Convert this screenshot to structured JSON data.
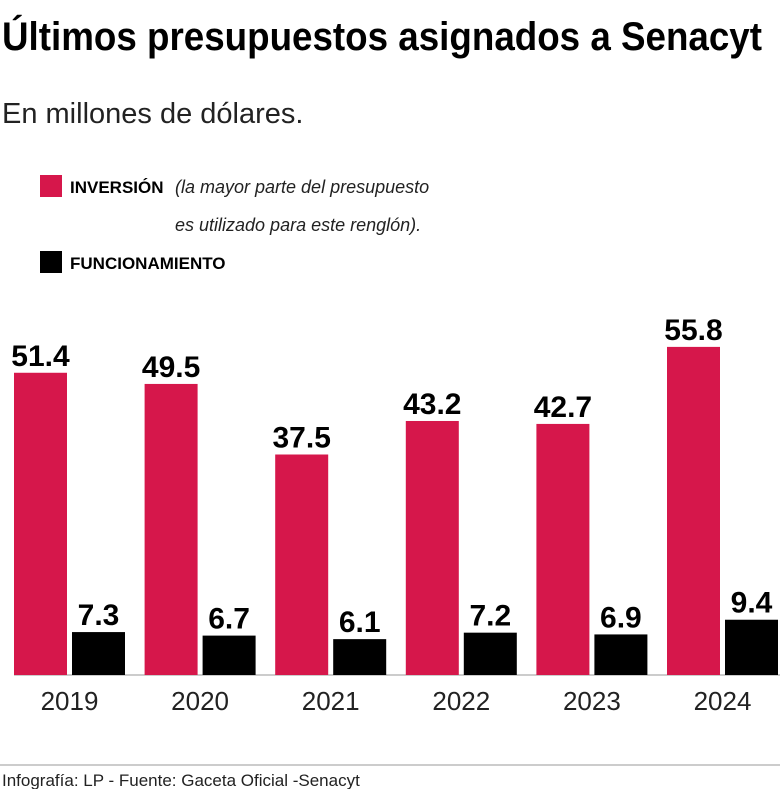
{
  "chart_data": {
    "type": "bar",
    "title": "Últimos presupuestos asignados a Senacyt",
    "subtitle": "En millones de dólares.",
    "categories": [
      "2019",
      "2020",
      "2021",
      "2022",
      "2023",
      "2024"
    ],
    "series": [
      {
        "name": "INVERSIÓN",
        "note": [
          "(la mayor parte del presupuesto",
          "es utilizado para este renglón)."
        ],
        "color": "#d6174b",
        "values": [
          51.4,
          49.5,
          37.5,
          43.2,
          42.7,
          55.8
        ]
      },
      {
        "name": "FUNCIONAMIENTO",
        "color": "#000000",
        "values": [
          7.3,
          6.7,
          6.1,
          7.2,
          6.9,
          9.4
        ]
      }
    ],
    "source": "Infografía: LP - Fuente: Gaceta Oficial -Senacyt"
  }
}
